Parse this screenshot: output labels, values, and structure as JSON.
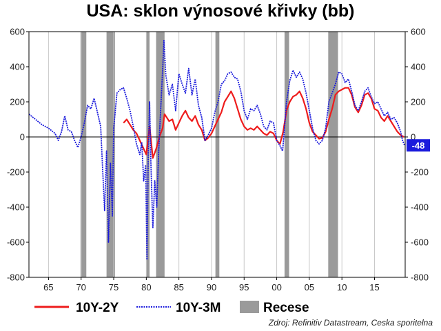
{
  "chart_data": {
    "type": "line",
    "title": "USA: sklon výnosové křivky (bb)",
    "xlabel": "",
    "ylabel": "",
    "xlim": [
      1962,
      2019.7
    ],
    "ylim": [
      -800,
      600
    ],
    "x_ticks": [
      65,
      70,
      75,
      80,
      85,
      90,
      95,
      0,
      5,
      10,
      15
    ],
    "x_tick_labels": [
      "65",
      "70",
      "75",
      "80",
      "85",
      "90",
      "95",
      "00",
      "05",
      "10",
      "15"
    ],
    "y_ticks": [
      -800,
      -600,
      -400,
      -200,
      0,
      200,
      400,
      600
    ],
    "y_tick_labels": [
      "-800",
      "-600",
      "-400",
      "-200",
      "0",
      "200",
      "400",
      "600"
    ],
    "grid": "vertical",
    "recessions": [
      [
        1969.9,
        1970.8
      ],
      [
        1973.9,
        1975.2
      ],
      [
        1980.0,
        1980.5
      ],
      [
        1981.5,
        1982.8
      ],
      [
        1990.6,
        1991.2
      ],
      [
        2001.2,
        2001.9
      ],
      [
        2007.9,
        2009.4
      ]
    ],
    "series": [
      {
        "name": "10Y-2Y",
        "color": "#ee1c1c",
        "style": "solid",
        "points": [
          [
            1976.5,
            80
          ],
          [
            1977.0,
            100
          ],
          [
            1977.5,
            70
          ],
          [
            1978.0,
            40
          ],
          [
            1978.5,
            20
          ],
          [
            1979.0,
            -20
          ],
          [
            1979.5,
            -60
          ],
          [
            1980.0,
            -100
          ],
          [
            1980.5,
            60
          ],
          [
            1981.0,
            -120
          ],
          [
            1981.5,
            -70
          ],
          [
            1982.0,
            0
          ],
          [
            1982.5,
            50
          ],
          [
            1982.8,
            130
          ],
          [
            1983.5,
            90
          ],
          [
            1984.0,
            100
          ],
          [
            1984.5,
            40
          ],
          [
            1985.0,
            80
          ],
          [
            1985.5,
            120
          ],
          [
            1986.0,
            150
          ],
          [
            1986.5,
            110
          ],
          [
            1987.0,
            90
          ],
          [
            1987.5,
            120
          ],
          [
            1988.0,
            70
          ],
          [
            1988.5,
            40
          ],
          [
            1989.0,
            -20
          ],
          [
            1989.5,
            -5
          ],
          [
            1990.0,
            20
          ],
          [
            1990.5,
            60
          ],
          [
            1991.0,
            100
          ],
          [
            1991.5,
            140
          ],
          [
            1992.0,
            200
          ],
          [
            1992.5,
            230
          ],
          [
            1993.0,
            260
          ],
          [
            1993.5,
            220
          ],
          [
            1994.0,
            160
          ],
          [
            1994.5,
            100
          ],
          [
            1995.0,
            60
          ],
          [
            1995.5,
            40
          ],
          [
            1996.0,
            50
          ],
          [
            1996.5,
            40
          ],
          [
            1997.0,
            60
          ],
          [
            1997.5,
            40
          ],
          [
            1998.0,
            20
          ],
          [
            1998.5,
            10
          ],
          [
            1999.0,
            30
          ],
          [
            1999.5,
            20
          ],
          [
            2000.0,
            -20
          ],
          [
            2000.5,
            -40
          ],
          [
            2001.0,
            30
          ],
          [
            2001.5,
            150
          ],
          [
            2002.0,
            200
          ],
          [
            2002.5,
            230
          ],
          [
            2003.0,
            240
          ],
          [
            2003.5,
            260
          ],
          [
            2004.0,
            220
          ],
          [
            2004.5,
            160
          ],
          [
            2005.0,
            80
          ],
          [
            2005.5,
            30
          ],
          [
            2006.0,
            10
          ],
          [
            2006.5,
            -10
          ],
          [
            2007.0,
            -5
          ],
          [
            2007.5,
            30
          ],
          [
            2008.0,
            100
          ],
          [
            2008.5,
            160
          ],
          [
            2009.0,
            240
          ],
          [
            2009.5,
            260
          ],
          [
            2010.0,
            270
          ],
          [
            2010.5,
            280
          ],
          [
            2011.0,
            280
          ],
          [
            2011.5,
            240
          ],
          [
            2012.0,
            170
          ],
          [
            2012.5,
            140
          ],
          [
            2013.0,
            180
          ],
          [
            2013.5,
            240
          ],
          [
            2014.0,
            250
          ],
          [
            2014.5,
            220
          ],
          [
            2015.0,
            160
          ],
          [
            2015.5,
            150
          ],
          [
            2016.0,
            110
          ],
          [
            2016.5,
            90
          ],
          [
            2017.0,
            120
          ],
          [
            2017.5,
            90
          ],
          [
            2018.0,
            60
          ],
          [
            2018.5,
            30
          ],
          [
            2019.0,
            10
          ],
          [
            2019.5,
            0
          ]
        ]
      },
      {
        "name": "10Y-3M",
        "color": "#1a1adc",
        "style": "dotted",
        "points": [
          [
            1962.0,
            130
          ],
          [
            1963.0,
            100
          ],
          [
            1964.0,
            70
          ],
          [
            1965.0,
            50
          ],
          [
            1966.0,
            20
          ],
          [
            1966.5,
            -20
          ],
          [
            1967.0,
            30
          ],
          [
            1967.5,
            120
          ],
          [
            1968.0,
            40
          ],
          [
            1968.5,
            30
          ],
          [
            1969.0,
            -20
          ],
          [
            1969.5,
            -60
          ],
          [
            1970.0,
            0
          ],
          [
            1970.5,
            80
          ],
          [
            1971.0,
            180
          ],
          [
            1971.5,
            160
          ],
          [
            1972.0,
            220
          ],
          [
            1972.5,
            140
          ],
          [
            1973.0,
            60
          ],
          [
            1973.3,
            -180
          ],
          [
            1973.6,
            -420
          ],
          [
            1973.9,
            -80
          ],
          [
            1974.2,
            -600
          ],
          [
            1974.5,
            -150
          ],
          [
            1974.8,
            -450
          ],
          [
            1975.0,
            50
          ],
          [
            1975.5,
            250
          ],
          [
            1976.0,
            270
          ],
          [
            1976.5,
            280
          ],
          [
            1977.0,
            220
          ],
          [
            1977.5,
            150
          ],
          [
            1978.0,
            60
          ],
          [
            1978.5,
            -40
          ],
          [
            1979.0,
            -100
          ],
          [
            1979.3,
            -30
          ],
          [
            1979.6,
            -250
          ],
          [
            1979.9,
            -160
          ],
          [
            1980.1,
            -700
          ],
          [
            1980.3,
            -100
          ],
          [
            1980.5,
            200
          ],
          [
            1980.7,
            -150
          ],
          [
            1981.0,
            -520
          ],
          [
            1981.3,
            -250
          ],
          [
            1981.6,
            -400
          ],
          [
            1981.9,
            -80
          ],
          [
            1982.2,
            150
          ],
          [
            1982.5,
            380
          ],
          [
            1982.7,
            550
          ],
          [
            1983.0,
            350
          ],
          [
            1983.5,
            240
          ],
          [
            1984.0,
            300
          ],
          [
            1984.5,
            150
          ],
          [
            1985.0,
            360
          ],
          [
            1985.5,
            300
          ],
          [
            1986.0,
            250
          ],
          [
            1986.5,
            390
          ],
          [
            1987.0,
            240
          ],
          [
            1987.5,
            330
          ],
          [
            1988.0,
            180
          ],
          [
            1988.5,
            110
          ],
          [
            1989.0,
            -20
          ],
          [
            1989.5,
            10
          ],
          [
            1990.0,
            50
          ],
          [
            1990.5,
            140
          ],
          [
            1991.0,
            200
          ],
          [
            1991.5,
            300
          ],
          [
            1992.0,
            320
          ],
          [
            1992.5,
            360
          ],
          [
            1993.0,
            370
          ],
          [
            1993.5,
            340
          ],
          [
            1994.0,
            330
          ],
          [
            1994.5,
            260
          ],
          [
            1995.0,
            150
          ],
          [
            1995.5,
            100
          ],
          [
            1996.0,
            160
          ],
          [
            1996.5,
            150
          ],
          [
            1997.0,
            180
          ],
          [
            1997.5,
            130
          ],
          [
            1998.0,
            60
          ],
          [
            1998.5,
            40
          ],
          [
            1999.0,
            90
          ],
          [
            1999.5,
            80
          ],
          [
            2000.0,
            -20
          ],
          [
            2000.5,
            -50
          ],
          [
            2000.9,
            -80
          ],
          [
            2001.2,
            50
          ],
          [
            2001.5,
            200
          ],
          [
            2002.0,
            320
          ],
          [
            2002.5,
            380
          ],
          [
            2003.0,
            340
          ],
          [
            2003.5,
            370
          ],
          [
            2004.0,
            330
          ],
          [
            2004.5,
            250
          ],
          [
            2005.0,
            150
          ],
          [
            2005.5,
            50
          ],
          [
            2006.0,
            -20
          ],
          [
            2006.5,
            -40
          ],
          [
            2007.0,
            -20
          ],
          [
            2007.5,
            50
          ],
          [
            2008.0,
            200
          ],
          [
            2008.5,
            250
          ],
          [
            2009.0,
            300
          ],
          [
            2009.5,
            370
          ],
          [
            2010.0,
            360
          ],
          [
            2010.5,
            310
          ],
          [
            2011.0,
            330
          ],
          [
            2011.5,
            260
          ],
          [
            2012.0,
            180
          ],
          [
            2012.5,
            150
          ],
          [
            2013.0,
            200
          ],
          [
            2013.5,
            260
          ],
          [
            2014.0,
            280
          ],
          [
            2014.5,
            230
          ],
          [
            2015.0,
            190
          ],
          [
            2015.5,
            200
          ],
          [
            2016.0,
            160
          ],
          [
            2016.5,
            120
          ],
          [
            2017.0,
            140
          ],
          [
            2017.5,
            100
          ],
          [
            2018.0,
            110
          ],
          [
            2018.5,
            80
          ],
          [
            2019.0,
            30
          ],
          [
            2019.3,
            -20
          ],
          [
            2019.6,
            -48
          ]
        ]
      }
    ],
    "last_value_label": "-48",
    "legend": {
      "placement": "bottom",
      "items": [
        {
          "label": "10Y-2Y",
          "kind": "line-solid",
          "color": "#ee1c1c"
        },
        {
          "label": "10Y-3M",
          "kind": "line-dotted",
          "color": "#1a1adc"
        },
        {
          "label": "Recese",
          "kind": "box",
          "color": "#9a9a9a"
        }
      ]
    },
    "source": "Zdroj: Refinitiv Datastream, Ceska sporitelna"
  }
}
